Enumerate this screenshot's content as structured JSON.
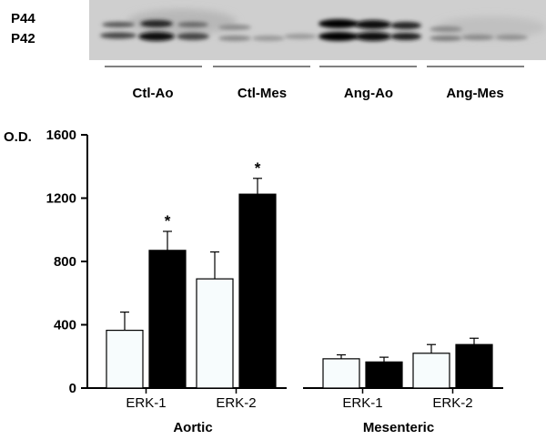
{
  "blot": {
    "band_labels": [
      "P44",
      "P42"
    ],
    "lane_groups": [
      "Ctl-Ao",
      "Ctl-Mes",
      "Ang-Ao",
      "Ang-Mes"
    ]
  },
  "chart_data": {
    "type": "bar",
    "ylabel": "O.D.",
    "ylim": [
      0,
      1600
    ],
    "yticks": [
      0,
      400,
      800,
      1200,
      1600
    ],
    "groups": [
      {
        "name": "Aortic",
        "categories": [
          "ERK-1",
          "ERK-2"
        ],
        "series": [
          {
            "color": "#f7fcfd",
            "values": [
              365,
              690
            ],
            "errors": [
              115,
              170
            ]
          },
          {
            "color": "#000000",
            "values": [
              870,
              1225
            ],
            "errors": [
              120,
              100
            ]
          }
        ],
        "annotations": [
          {
            "category": "ERK-1",
            "series": 1,
            "text": "*"
          },
          {
            "category": "ERK-2",
            "series": 1,
            "text": "*"
          }
        ]
      },
      {
        "name": "Mesenteric",
        "categories": [
          "ERK-1",
          "ERK-2"
        ],
        "series": [
          {
            "color": "#f7fcfd",
            "values": [
              185,
              220
            ],
            "errors": [
              25,
              55
            ]
          },
          {
            "color": "#000000",
            "values": [
              165,
              275
            ],
            "errors": [
              30,
              40
            ]
          }
        ],
        "annotations": []
      }
    ]
  }
}
